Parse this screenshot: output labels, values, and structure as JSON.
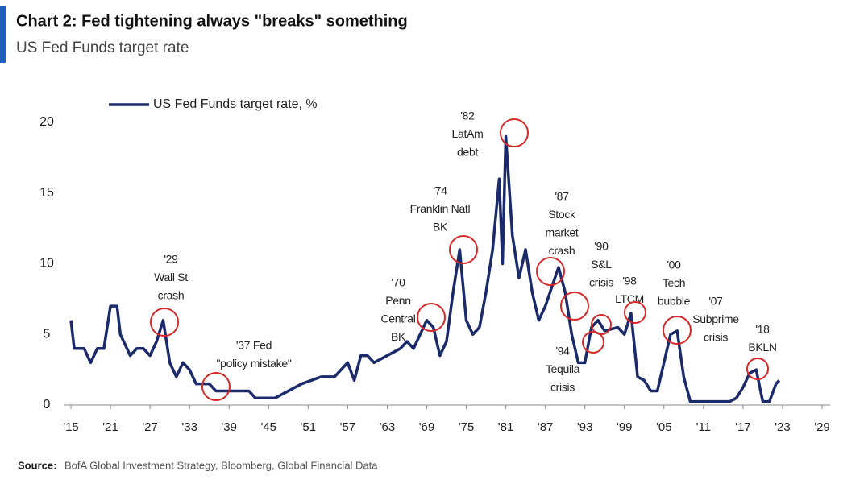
{
  "chart_data": {
    "type": "line",
    "title": "Chart 2: Fed tightening always \"breaks\" something",
    "subtitle": "US Fed Funds target rate",
    "source_label": "Source:",
    "source_text": "BofA Global Investment Strategy, Bloomberg, Global Financial Data",
    "x": [
      1915,
      1915.5,
      1917,
      1918,
      1919,
      1920,
      1921,
      1922,
      1922.5,
      1923,
      1924,
      1925,
      1926,
      1927,
      1928,
      1929,
      1930,
      1931,
      1932,
      1933,
      1934,
      1936,
      1937,
      1939,
      1942,
      1943,
      1946,
      1948,
      1950,
      1953,
      1955,
      1957,
      1958,
      1959,
      1960,
      1961,
      1963,
      1965,
      1966,
      1967,
      1968,
      1969,
      1970,
      1971,
      1972,
      1973,
      1974,
      1975,
      1976,
      1977,
      1978,
      1979,
      1980,
      1980.5,
      1981,
      1982,
      1983,
      1984,
      1985,
      1986,
      1987,
      1989,
      1990,
      1991,
      1992,
      1993,
      1994,
      1995,
      1996,
      1998,
      1999,
      2000,
      2001,
      2002,
      2003,
      2004,
      2005,
      2006,
      2007,
      2008,
      2009,
      2015,
      2016,
      2017,
      2018,
      2019,
      2020,
      2021,
      2022,
      2022.5
    ],
    "series": [
      {
        "name": "US Fed Funds target rate, %",
        "color": "#1b2a6b",
        "values": [
          6,
          4,
          4,
          3,
          4,
          4,
          7,
          7,
          5,
          4.5,
          3.5,
          4,
          4,
          3.5,
          4.5,
          6,
          3,
          2,
          3,
          2.5,
          1.5,
          1.5,
          1,
          1,
          1,
          0.5,
          0.5,
          1,
          1.5,
          2,
          2,
          3,
          1.75,
          3.5,
          3.5,
          3,
          3.5,
          4,
          4.5,
          4,
          5,
          6,
          5.5,
          3.5,
          4.5,
          8,
          11,
          6,
          5,
          5.5,
          8,
          11,
          16,
          10,
          19,
          12,
          9,
          11,
          8,
          6,
          7,
          9.75,
          8,
          5,
          3,
          3,
          5.5,
          6,
          5.25,
          5.5,
          5,
          6.5,
          2,
          1.75,
          1,
          1,
          3,
          5,
          5.25,
          2,
          0.25,
          0.25,
          0.5,
          1.25,
          2.25,
          2.5,
          0.25,
          0.25,
          1.5,
          1.75
        ]
      }
    ],
    "xlim": [
      1915,
      2029
    ],
    "ylim": [
      0,
      20
    ],
    "yticks": [
      0,
      5,
      10,
      15,
      20
    ],
    "xticks": [
      {
        "value": 1915,
        "label": "'15"
      },
      {
        "value": 1921,
        "label": "'21"
      },
      {
        "value": 1927,
        "label": "'27"
      },
      {
        "value": 1933,
        "label": "'33"
      },
      {
        "value": 1939,
        "label": "'39"
      },
      {
        "value": 1945,
        "label": "'45"
      },
      {
        "value": 1951,
        "label": "'51"
      },
      {
        "value": 1957,
        "label": "'57"
      },
      {
        "value": 1963,
        "label": "'63"
      },
      {
        "value": 1969,
        "label": "'69"
      },
      {
        "value": 1975,
        "label": "'75"
      },
      {
        "value": 1981,
        "label": "'81"
      },
      {
        "value": 1987,
        "label": "'87"
      },
      {
        "value": 1993,
        "label": "'93"
      },
      {
        "value": 1999,
        "label": "'99"
      },
      {
        "value": 2005,
        "label": "'05"
      },
      {
        "value": 2011,
        "label": "'11"
      },
      {
        "value": 2017,
        "label": "'17"
      },
      {
        "value": 2023,
        "label": "'23"
      },
      {
        "value": 2029,
        "label": "'29"
      }
    ],
    "annotations": [
      [
        "'29",
        "Wall St",
        "crash"
      ],
      [
        "'37 Fed",
        "\"policy mistake\""
      ],
      [
        "'70",
        "Penn",
        "Central",
        "BK"
      ],
      [
        "'74",
        "Franklin Natl",
        "BK"
      ],
      [
        "'82",
        "LatAm",
        "debt"
      ],
      [
        "'87",
        "Stock",
        "market",
        "crash"
      ],
      [
        "'90",
        "S&L",
        "crisis"
      ],
      [
        "'94",
        "Tequila",
        "crisis"
      ],
      [
        "'98",
        "LTCM"
      ],
      [
        "'00",
        "Tech",
        "bubble"
      ],
      [
        "'07",
        "Subprime",
        "crisis"
      ],
      [
        "'18",
        "BKLN"
      ]
    ],
    "legend": "top-left",
    "annotation_color": "#d62828"
  }
}
